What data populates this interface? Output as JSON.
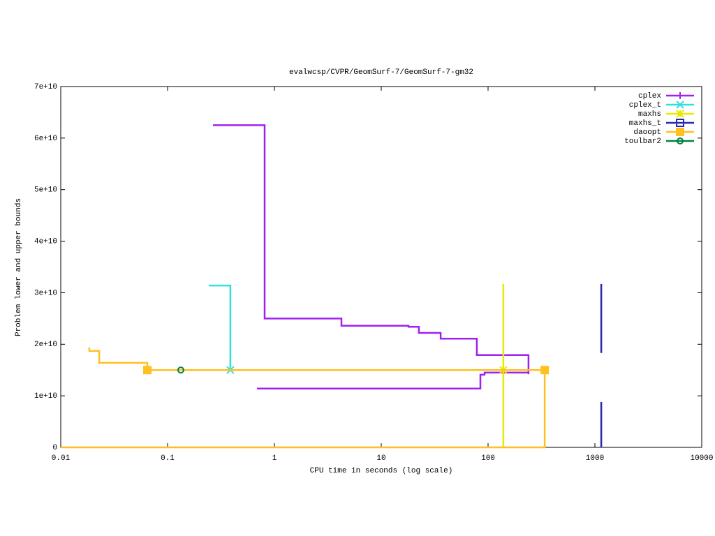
{
  "chart_data": {
    "type": "line",
    "title": "evalwcsp/CVPR/GeomSurf-7/GeomSurf-7-gm32",
    "x_label": "CPU time in seconds (log scale)",
    "y_label": "Problem lower and upper bounds",
    "xlog": true,
    "xlim": [
      0.01,
      10000
    ],
    "xticks": [
      0.01,
      0.1,
      1,
      10,
      100,
      1000,
      10000
    ],
    "ylim": [
      0,
      70000000000
    ],
    "yticks": [
      {
        "value": 0,
        "label": "0"
      },
      {
        "value": 10000000000,
        "label": "1e+10"
      },
      {
        "value": 20000000000,
        "label": "2e+10"
      },
      {
        "value": 30000000000,
        "label": "3e+10"
      },
      {
        "value": 40000000000,
        "label": "4e+10"
      },
      {
        "value": 50000000000,
        "label": "5e+10"
      },
      {
        "value": 60000000000,
        "label": "6e+10"
      },
      {
        "value": 70000000000,
        "label": "7e+10"
      }
    ],
    "legend": "top-right",
    "series": [
      {
        "name": "cplex",
        "color": "#a020f0",
        "marker": "plus",
        "x": [
          0.266,
          0.81,
          0.81,
          4.24,
          4.24,
          18,
          18,
          22.5,
          22.5,
          36,
          36,
          78.5,
          78.5,
          239,
          239,
          null,
          0.687,
          84.7,
          84.7,
          92.7,
          92.7,
          239,
          239
        ],
        "values": [
          62500000000,
          62500000000,
          25000000000,
          25000000000,
          23600000000,
          23600000000,
          23400000000,
          23400000000,
          22200000000,
          22200000000,
          21100000000,
          21100000000,
          17900000000,
          17900000000,
          14200000000,
          null,
          11400000000,
          11400000000,
          14100000000,
          14100000000,
          14500000000,
          14500000000,
          15700000000
        ],
        "markers": {
          "x": [
            239
          ],
          "values": [
            15000000000
          ]
        }
      },
      {
        "name": "cplex_t",
        "color": "#30e0e0",
        "marker": "cross",
        "x": [
          0.243,
          0.387,
          0.387
        ],
        "values": [
          31400000000,
          31400000000,
          15000000000
        ],
        "markers": {
          "x": [
            0.387
          ],
          "values": [
            15000000000
          ]
        }
      },
      {
        "name": "maxhs",
        "color": "#e8e800",
        "marker": "star",
        "x": [
          139,
          139
        ],
        "values": [
          31700000000,
          0
        ],
        "markers": {
          "x": [
            139
          ],
          "values": [
            15000000000
          ]
        }
      },
      {
        "name": "maxhs_t",
        "color": "#2a2ab0",
        "marker": "square-open",
        "x": [
          1146,
          1146,
          null,
          1146,
          1146
        ],
        "values": [
          31700000000,
          18300000000,
          null,
          8800000000,
          0
        ],
        "markers": {
          "x": [],
          "values": []
        }
      },
      {
        "name": "daoopt",
        "color": "#ffc020",
        "marker": "square",
        "x": [
          0.0185,
          0.0185,
          0.0229,
          0.0229,
          0.0646,
          0.0646,
          339,
          339,
          0.01
        ],
        "values": [
          19400000000,
          18700000000,
          18700000000,
          16400000000,
          16400000000,
          15000000000,
          15000000000,
          0,
          0
        ],
        "markers": {
          "x": [
            0.0646,
            339
          ],
          "values": [
            15000000000,
            15000000000
          ]
        }
      },
      {
        "name": "toulbar2",
        "color": "#008040",
        "marker": "circle",
        "x": [
          0.133
        ],
        "values": [
          15000000000
        ],
        "markers": {
          "x": [
            0.133
          ],
          "values": [
            15000000000
          ]
        }
      }
    ]
  }
}
